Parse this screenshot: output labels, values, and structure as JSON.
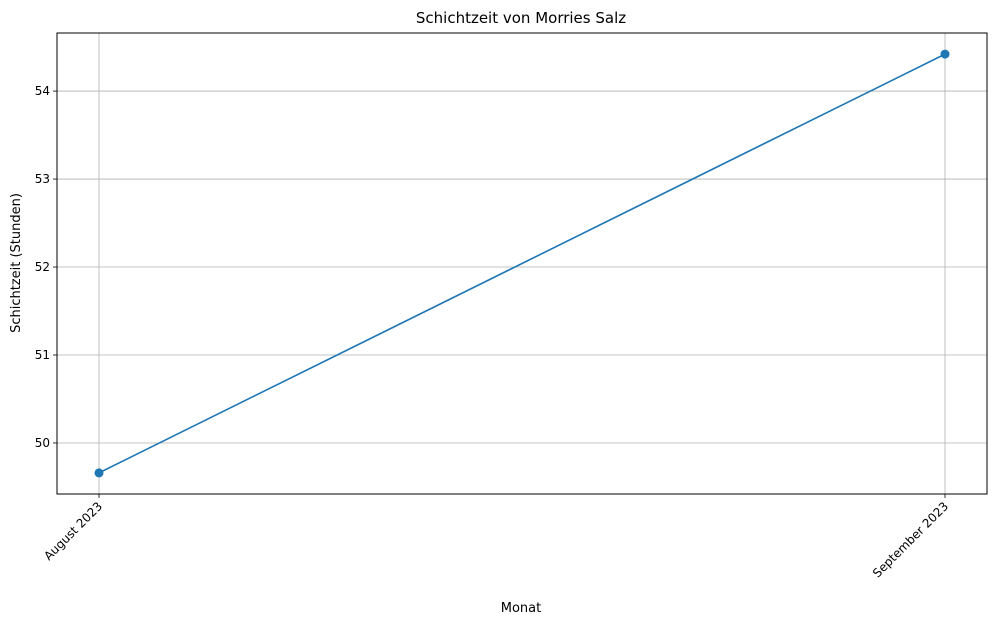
{
  "chart_data": {
    "type": "line",
    "title": "Schichtzeit von Morries Salz",
    "xlabel": "Monat",
    "ylabel": "Schichtzeit (Stunden)",
    "categories": [
      "August 2023",
      "September 2023"
    ],
    "series": [
      {
        "values": [
          49.66,
          54.42
        ],
        "color": "#1f77b4",
        "marker": "circle"
      }
    ],
    "ylim": [
      49.42,
      54.66
    ],
    "yticks": [
      50,
      51,
      52,
      53,
      54
    ],
    "grid": true,
    "x_tick_rotation_deg": 45
  }
}
